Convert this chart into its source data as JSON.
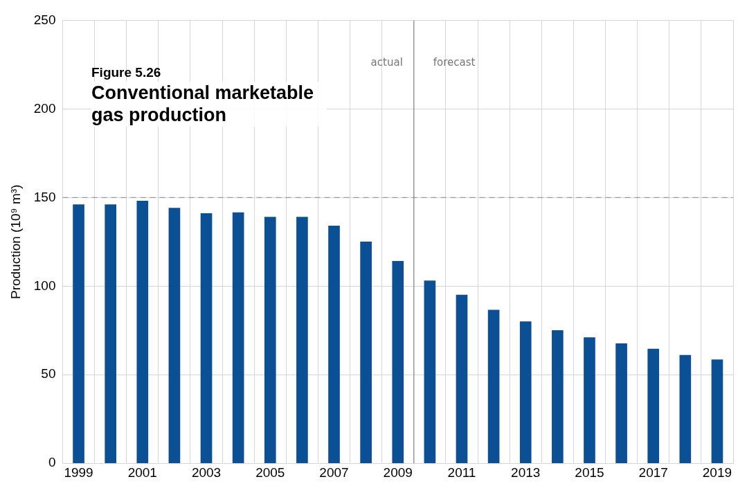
{
  "chart_data": {
    "type": "bar",
    "title": "Figure 5.26",
    "subtitle": "Conventional marketable gas production",
    "ylabel": "Production (10⁹ m³)",
    "x": [
      1999,
      2000,
      2001,
      2002,
      2003,
      2004,
      2005,
      2006,
      2007,
      2008,
      2009,
      2010,
      2011,
      2012,
      2013,
      2014,
      2015,
      2016,
      2017,
      2018,
      2019
    ],
    "values": [
      146,
      146,
      148,
      144,
      141,
      141.5,
      139,
      139,
      134,
      125,
      114,
      103,
      95,
      86.5,
      80,
      75,
      71,
      67.5,
      64.5,
      61,
      58.5
    ],
    "color": "#0b4f95",
    "xlim": [
      1998.5,
      2019.5
    ],
    "xticks": [
      {
        "value": 1998.5,
        "label": null
      },
      1999,
      {
        "value": 1999.5,
        "label": null
      },
      {
        "value": 2000.5,
        "label": null
      },
      2001,
      {
        "value": 2001.5,
        "label": null
      },
      {
        "value": 2002.5,
        "label": null
      },
      2003,
      {
        "value": 2003.5,
        "label": null
      },
      {
        "value": 2004.5,
        "label": null
      },
      2005,
      {
        "value": 2005.5,
        "label": null
      },
      {
        "value": 2006.5,
        "label": null
      },
      2007,
      {
        "value": 2007.5,
        "label": null
      },
      {
        "value": 2008.5,
        "label": null
      },
      2009,
      {
        "value": 2010.5,
        "label": null
      },
      2011,
      {
        "value": 2011.5,
        "label": null
      },
      {
        "value": 2012.5,
        "label": null
      },
      2013,
      {
        "value": 2013.5,
        "label": null
      },
      {
        "value": 2014.5,
        "label": null
      },
      2015,
      {
        "value": 2015.5,
        "label": null
      },
      {
        "value": 2016.5,
        "label": null
      },
      2017,
      {
        "value": 2017.5,
        "label": null
      },
      {
        "value": 2018.5,
        "label": null
      },
      2019,
      {
        "value": 2019.5,
        "label": null
      }
    ],
    "ylim": [
      0,
      250
    ],
    "yticks": [
      0,
      50,
      100,
      150,
      200,
      250
    ],
    "grid": true,
    "legend": false,
    "ref_lines": [
      {
        "axis": "y",
        "value": 150,
        "color": "#999999",
        "line_style": "dashed"
      },
      {
        "axis": "x",
        "value": 2009.5,
        "color": "#888888",
        "line_style": "solid"
      }
    ],
    "annotations": [
      "actual",
      "forecast"
    ]
  }
}
